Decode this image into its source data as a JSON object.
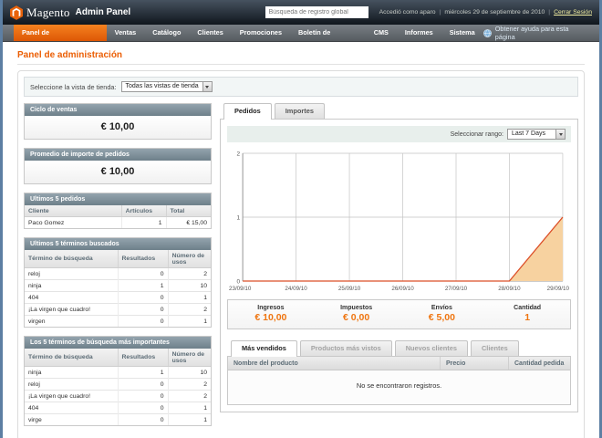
{
  "colors": {
    "brand_orange": "#eb5e04",
    "nav_active_orange": "#e86a0a",
    "value_orange": "#ef7510",
    "panel_header_slate": "#7e919c",
    "side_border_blue": "#5d7fa3",
    "chart_line": "#dc4f28",
    "chart_fill": "#f7d2a0"
  },
  "header": {
    "logo_text": "Magento",
    "logo_suffix": "Admin Panel",
    "search_value": "Búsqueda de registro global",
    "logged_in_as": "Accedió como aparo",
    "date_text": "miércoles 29 de septiembre de 2010",
    "logout_label": "Cerrar Sesión"
  },
  "nav": {
    "items": [
      {
        "label": "Panel de administración",
        "active": true
      },
      {
        "label": "Ventas",
        "active": false
      },
      {
        "label": "Catálogo",
        "active": false
      },
      {
        "label": "Clientes",
        "active": false
      },
      {
        "label": "Promociones",
        "active": false
      },
      {
        "label": "Boletín de noticias",
        "active": false
      },
      {
        "label": "CMS",
        "active": false
      },
      {
        "label": "Informes",
        "active": false
      },
      {
        "label": "Sistema",
        "active": false
      }
    ],
    "help_label": "Obtener ayuda para esta página"
  },
  "page": {
    "title": "Panel de administración",
    "store_view_label": "Seleccione la vista de tienda:",
    "store_view_value": "Todas las vistas de tienda"
  },
  "left_panels": {
    "lifetime_sales": {
      "title": "Ciclo de ventas",
      "value": "€ 10,00"
    },
    "average_orders": {
      "title": "Promedio de importe de pedidos",
      "value": "€ 10,00"
    },
    "last_orders": {
      "title": "Ultimos 5 pedidos",
      "columns": [
        "Cliente",
        "Artículos",
        "Total"
      ],
      "rows": [
        [
          "Paco Gomez",
          "1",
          "€ 15,00"
        ]
      ]
    },
    "last_search_terms": {
      "title": "Ultimos 5 términos buscados",
      "columns": [
        "Término de búsqueda",
        "Resultados",
        "Número de usos"
      ],
      "rows": [
        [
          "reloj",
          "0",
          "2"
        ],
        [
          "ninja",
          "1",
          "10"
        ],
        [
          "404",
          "0",
          "1"
        ],
        [
          "¡La virgen que cuadro!",
          "0",
          "2"
        ],
        [
          "virgen",
          "0",
          "1"
        ]
      ]
    },
    "top_search_terms": {
      "title": "Los 5 términos de búsqueda más importantes",
      "columns": [
        "Término de búsqueda",
        "Resultados",
        "Número de usos"
      ],
      "rows": [
        [
          "ninja",
          "1",
          "10"
        ],
        [
          "reloj",
          "0",
          "2"
        ],
        [
          "¡La virgen que cuadro!",
          "0",
          "2"
        ],
        [
          "404",
          "0",
          "1"
        ],
        [
          "virge",
          "0",
          "1"
        ]
      ]
    }
  },
  "dashboard": {
    "tabs": [
      {
        "label": "Pedidos",
        "active": true
      },
      {
        "label": "Importes",
        "active": false
      }
    ],
    "range_label": "Seleccionar rango:",
    "range_value": "Last 7 Days",
    "stats": [
      {
        "label": "Ingresos",
        "value": "€ 10,00"
      },
      {
        "label": "Impuestos",
        "value": "€ 0,00"
      },
      {
        "label": "Envíos",
        "value": "€ 5,00"
      },
      {
        "label": "Cantidad",
        "value": "1"
      }
    ],
    "bottom_tabs": [
      {
        "label": "Más vendidos",
        "active": true
      },
      {
        "label": "Productos más vistos",
        "active": false
      },
      {
        "label": "Nuevos clientes",
        "active": false
      },
      {
        "label": "Clientes",
        "active": false
      }
    ],
    "products_table": {
      "columns": [
        "Nombre del producto",
        "Precio",
        "Cantidad pedida"
      ],
      "empty_message": "No se encontraron registros."
    }
  },
  "chart_data": {
    "type": "area",
    "x": [
      "23/09/10",
      "24/09/10",
      "25/09/10",
      "26/09/10",
      "27/09/10",
      "28/09/10",
      "29/09/10"
    ],
    "series": [
      {
        "name": "Pedidos",
        "values": [
          0,
          0,
          0,
          0,
          0,
          0,
          1
        ]
      }
    ],
    "xlabel": "",
    "ylabel": "",
    "ylim": [
      0,
      2
    ],
    "yticks": [
      0,
      1,
      2
    ],
    "grid": true,
    "legend": "none",
    "line_color": "#dc4f28",
    "fill_color": "#f7d2a0"
  }
}
